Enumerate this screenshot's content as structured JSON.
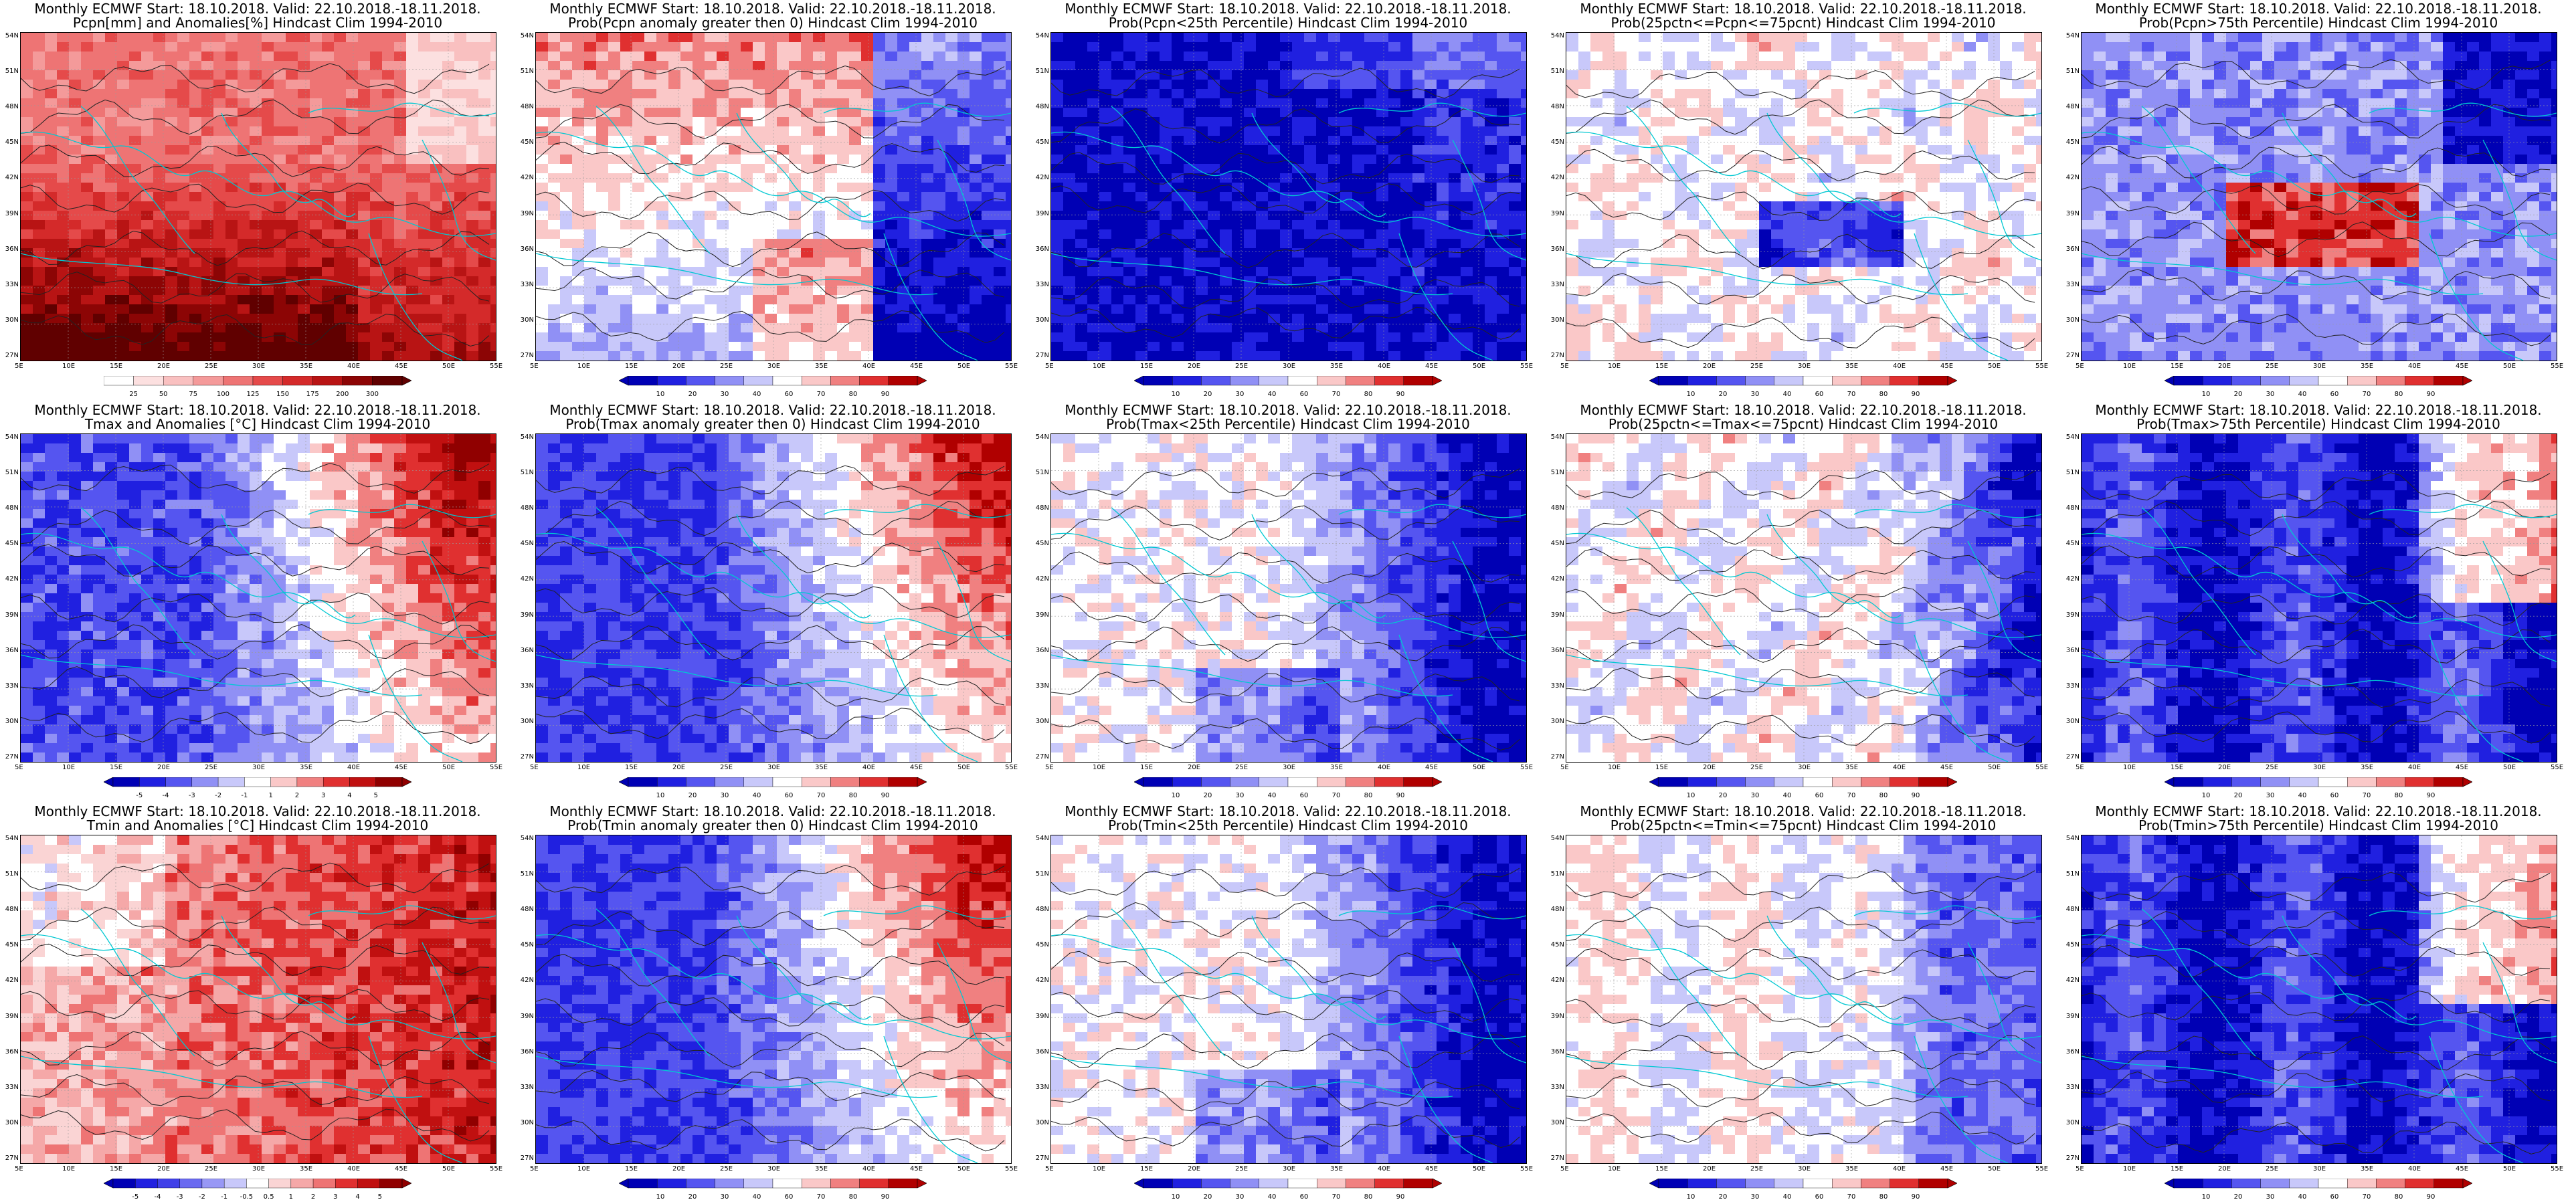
{
  "panels": [
    {
      "title1": "Monthly ECMWF Start: 18.10.2018. Valid: 22.10.2018.-18.11.2018.",
      "title2": "Pcpn[mm] and Anomalies[%] Hindcast Clim 1994-2010",
      "scale": "precip",
      "pattern": "red-south"
    },
    {
      "title1": "Monthly ECMWF Start: 18.10.2018. Valid: 22.10.2018.-18.11.2018.",
      "title2": "Prob(Pcpn anomaly greater then 0) Hindcast Clim 1994-2010",
      "scale": "prob",
      "pattern": "red-north"
    },
    {
      "title1": "Monthly ECMWF Start: 18.10.2018. Valid: 22.10.2018.-18.11.2018.",
      "title2": "Prob(Pcpn<25th Percentile) Hindcast Clim 1994-2010",
      "scale": "prob",
      "pattern": "blue-all"
    },
    {
      "title1": "Monthly ECMWF Start: 18.10.2018. Valid: 22.10.2018.-18.11.2018.",
      "title2": "Prob(25pctn<=Pcpn<=75pcnt) Hindcast Clim 1994-2010",
      "scale": "prob",
      "pattern": "white-mixed"
    },
    {
      "title1": "Monthly ECMWF Start: 18.10.2018. Valid: 22.10.2018.-18.11.2018.",
      "title2": "Prob(Pcpn>75th Percentile) Hindcast Clim 1994-2010",
      "scale": "prob",
      "pattern": "blue-red-center"
    },
    {
      "title1": "Monthly ECMWF Start: 18.10.2018. Valid: 22.10.2018.-18.11.2018.",
      "title2": "Tmax and Anomalies [°C] Hindcast Clim 1994-2010",
      "scale": "temp",
      "pattern": "blue-west-red-east"
    },
    {
      "title1": "Monthly ECMWF Start: 18.10.2018. Valid: 22.10.2018.-18.11.2018.",
      "title2": "Prob(Tmax anomaly greater then 0) Hindcast Clim 1994-2010",
      "scale": "prob",
      "pattern": "blue-west-red-east"
    },
    {
      "title1": "Monthly ECMWF Start: 18.10.2018. Valid: 22.10.2018.-18.11.2018.",
      "title2": "Prob(Tmax<25th Percentile) Hindcast Clim 1994-2010",
      "scale": "prob",
      "pattern": "white-west-blue-east"
    },
    {
      "title1": "Monthly ECMWF Start: 18.10.2018. Valid: 22.10.2018.-18.11.2018.",
      "title2": "Prob(25pctn<=Tmax<=75pcnt) Hindcast Clim 1994-2010",
      "scale": "prob",
      "pattern": "white-mixed-blue-east"
    },
    {
      "title1": "Monthly ECMWF Start: 18.10.2018. Valid: 22.10.2018.-18.11.2018.",
      "title2": "Prob(Tmax>75th Percentile) Hindcast Clim 1994-2010",
      "scale": "prob",
      "pattern": "blue-all-red-ne"
    },
    {
      "title1": "Monthly ECMWF Start: 18.10.2018. Valid: 22.10.2018.-18.11.2018.",
      "title2": "Tmin and Anomalies [°C] Hindcast Clim 1994-2010",
      "scale": "temp2",
      "pattern": "red-mostly"
    },
    {
      "title1": "Monthly ECMWF Start: 18.10.2018. Valid: 22.10.2018.-18.11.2018.",
      "title2": "Prob(Tmin anomaly greater then 0) Hindcast Clim 1994-2010",
      "scale": "prob",
      "pattern": "blue-west-red-east"
    },
    {
      "title1": "Monthly ECMWF Start: 18.10.2018. Valid: 22.10.2018.-18.11.2018.",
      "title2": "Prob(Tmin<25th Percentile) Hindcast Clim 1994-2010",
      "scale": "prob",
      "pattern": "white-west-blue-east"
    },
    {
      "title1": "Monthly ECMWF Start: 18.10.2018. Valid: 22.10.2018.-18.11.2018.",
      "title2": "Prob(25pctn<=Tmin<=75pcnt) Hindcast Clim 1994-2010",
      "scale": "prob",
      "pattern": "white-west-blue-east-light"
    },
    {
      "title1": "Monthly ECMWF Start: 18.10.2018. Valid: 22.10.2018.-18.11.2018.",
      "title2": "Prob(Tmin>75th Percentile) Hindcast Clim 1994-2010",
      "scale": "prob",
      "pattern": "blue-all-red-ne"
    }
  ],
  "lat_labels": [
    "54N",
    "51N",
    "48N",
    "45N",
    "42N",
    "39N",
    "36N",
    "33N",
    "30N",
    "27N"
  ],
  "lon_labels": [
    "5E",
    "10E",
    "15E",
    "20E",
    "25E",
    "30E",
    "35E",
    "40E",
    "45E",
    "50E",
    "55E"
  ],
  "scales": {
    "precip": {
      "ticks": [
        "25",
        "50",
        "75",
        "100",
        "125",
        "150",
        "175",
        "200",
        "300"
      ],
      "colors": [
        "#ffffff",
        "#fce0e0",
        "#f9c0c0",
        "#f49a9a",
        "#ee7474",
        "#e54a4a",
        "#d42a2a",
        "#b81414",
        "#8c0505",
        "#600000"
      ],
      "arrow_left": false
    },
    "prob": {
      "ticks": [
        "10",
        "20",
        "30",
        "40",
        "60",
        "70",
        "80",
        "90"
      ],
      "colors": [
        "#0000b4",
        "#2020e0",
        "#5555f0",
        "#9090f5",
        "#c8c8fa",
        "#ffffff",
        "#fac8c8",
        "#f08080",
        "#e03030",
        "#b00000"
      ],
      "arrow_left": true
    },
    "temp": {
      "ticks": [
        "-5",
        "-4",
        "-3",
        "-2",
        "-1",
        "1",
        "2",
        "3",
        "4",
        "5"
      ],
      "colors": [
        "#0000b4",
        "#2020e0",
        "#5555f0",
        "#9090f5",
        "#c8c8fa",
        "#ffffff",
        "#fac8c8",
        "#f08080",
        "#e03030",
        "#c01010",
        "#900000"
      ],
      "arrow_left": true
    },
    "temp2": {
      "ticks": [
        "-5",
        "-4",
        "-3",
        "-2",
        "-1",
        "-0.5",
        "0.5",
        "1",
        "2",
        "3",
        "4",
        "5"
      ],
      "colors": [
        "#0000b4",
        "#2020e0",
        "#4040e8",
        "#6a6af0",
        "#9898f5",
        "#c8c8fa",
        "#ffffff",
        "#fad4d4",
        "#f5a8a8",
        "#ee7474",
        "#e03030",
        "#c01010",
        "#900000"
      ],
      "arrow_left": true
    }
  },
  "colors": {
    "coast": "#00c8d2",
    "contour": "#222222",
    "grid": "#9a9a9a"
  }
}
